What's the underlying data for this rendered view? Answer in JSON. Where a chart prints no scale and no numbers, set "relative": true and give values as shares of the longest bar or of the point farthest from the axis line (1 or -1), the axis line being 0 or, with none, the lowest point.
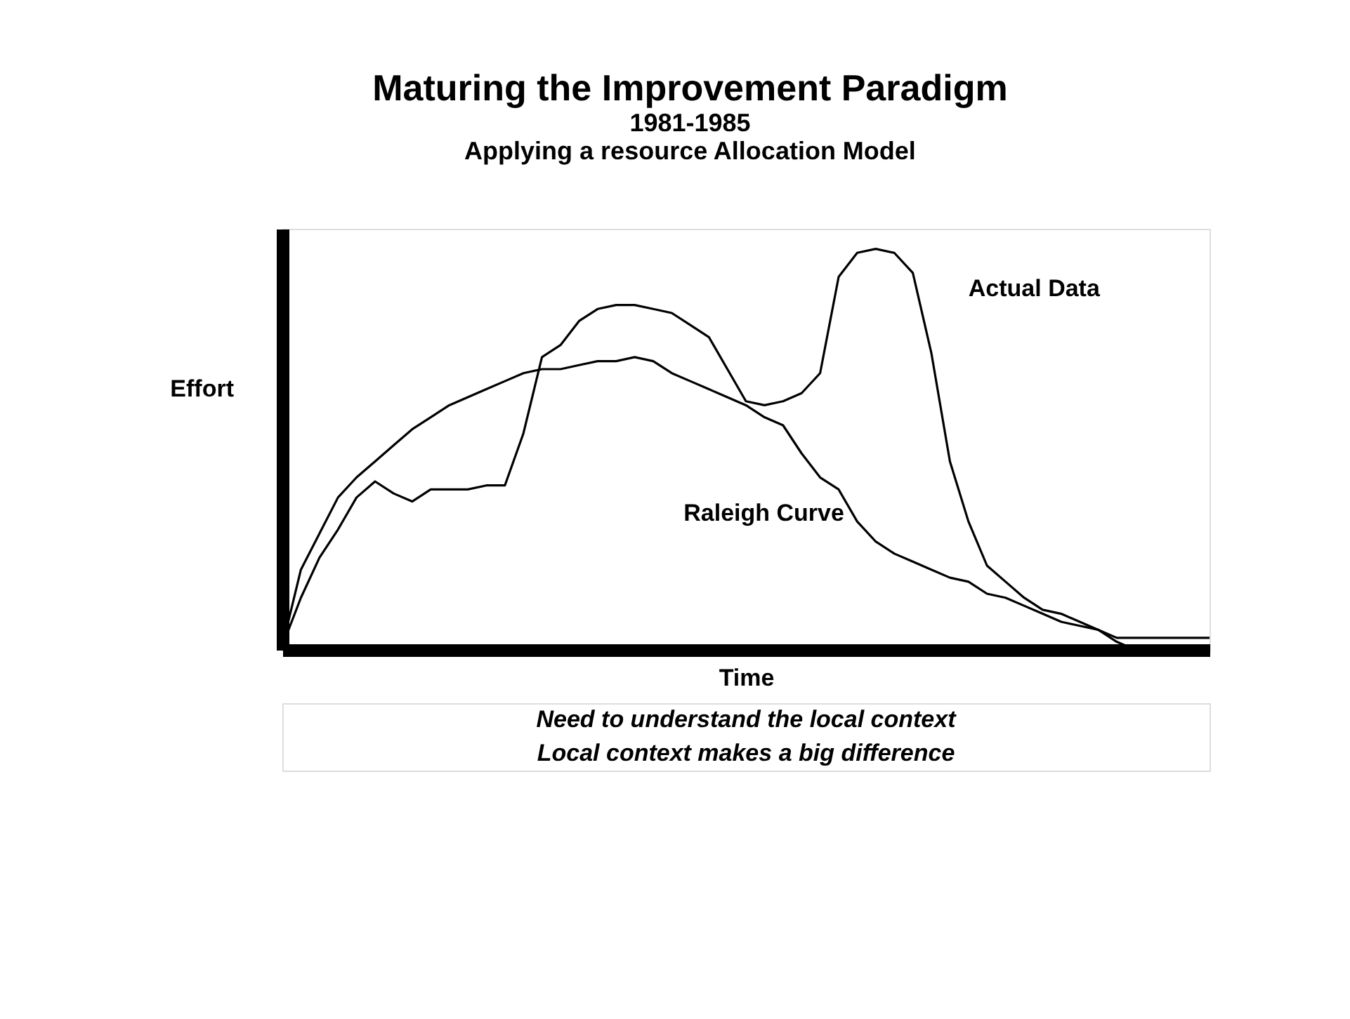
{
  "chart_data": {
    "type": "line",
    "title": "Maturing the Improvement Paradigm",
    "subtitle": [
      "1981-1985",
      "Applying a resource Allocation Model"
    ],
    "xlabel": "Time",
    "ylabel": "Effort",
    "relative": true,
    "legend": false,
    "grid": false,
    "marker": "none",
    "line_style": "solid",
    "categories": [
      null,
      null,
      null,
      null,
      null,
      null,
      null,
      null,
      null,
      null,
      null,
      null,
      null,
      null,
      null,
      null,
      null,
      null,
      null,
      null,
      null,
      null,
      null,
      null,
      null,
      null,
      null,
      null,
      null,
      null,
      null,
      null,
      null,
      null,
      null,
      null,
      null,
      null,
      null,
      null,
      null,
      null,
      null,
      null,
      null,
      null,
      null,
      null,
      null,
      null,
      null
    ],
    "series": [
      {
        "name": "Actual Data",
        "color": "#000000",
        "values": [
          0.01,
          0.13,
          0.23,
          0.3,
          0.38,
          0.42,
          0.39,
          0.37,
          0.4,
          0.4,
          0.4,
          0.41,
          0.41,
          0.54,
          0.73,
          0.76,
          0.82,
          0.85,
          0.86,
          0.86,
          0.85,
          0.84,
          0.81,
          0.78,
          0.7,
          0.62,
          0.61,
          0.62,
          0.64,
          0.69,
          0.93,
          0.99,
          1,
          0.99,
          0.94,
          0.74,
          0.47,
          0.32,
          0.21,
          0.17,
          0.13,
          0.1,
          0.09,
          0.07,
          0.05,
          0.03,
          0.03,
          0.03,
          0.03,
          0.03,
          0.03
        ]
      },
      {
        "name": "Raleigh Curve",
        "color": "#000000",
        "values": [
          0.01,
          0.2,
          0.29,
          0.38,
          0.43,
          0.47,
          0.51,
          0.55,
          0.58,
          0.61,
          0.63,
          0.65,
          0.67,
          0.69,
          0.7,
          0.7,
          0.71,
          0.72,
          0.72,
          0.73,
          0.72,
          0.69,
          0.67,
          0.65,
          0.63,
          0.61,
          0.58,
          0.56,
          0.49,
          0.43,
          0.4,
          0.32,
          0.27,
          0.24,
          0.22,
          0.2,
          0.18,
          0.17,
          0.14,
          0.13,
          0.11,
          0.09,
          0.07,
          0.06,
          0.05,
          0.02,
          0,
          null,
          null,
          null,
          null
        ]
      }
    ],
    "annotations": [
      "Need to understand the local context",
      "Local context makes a big difference"
    ]
  }
}
